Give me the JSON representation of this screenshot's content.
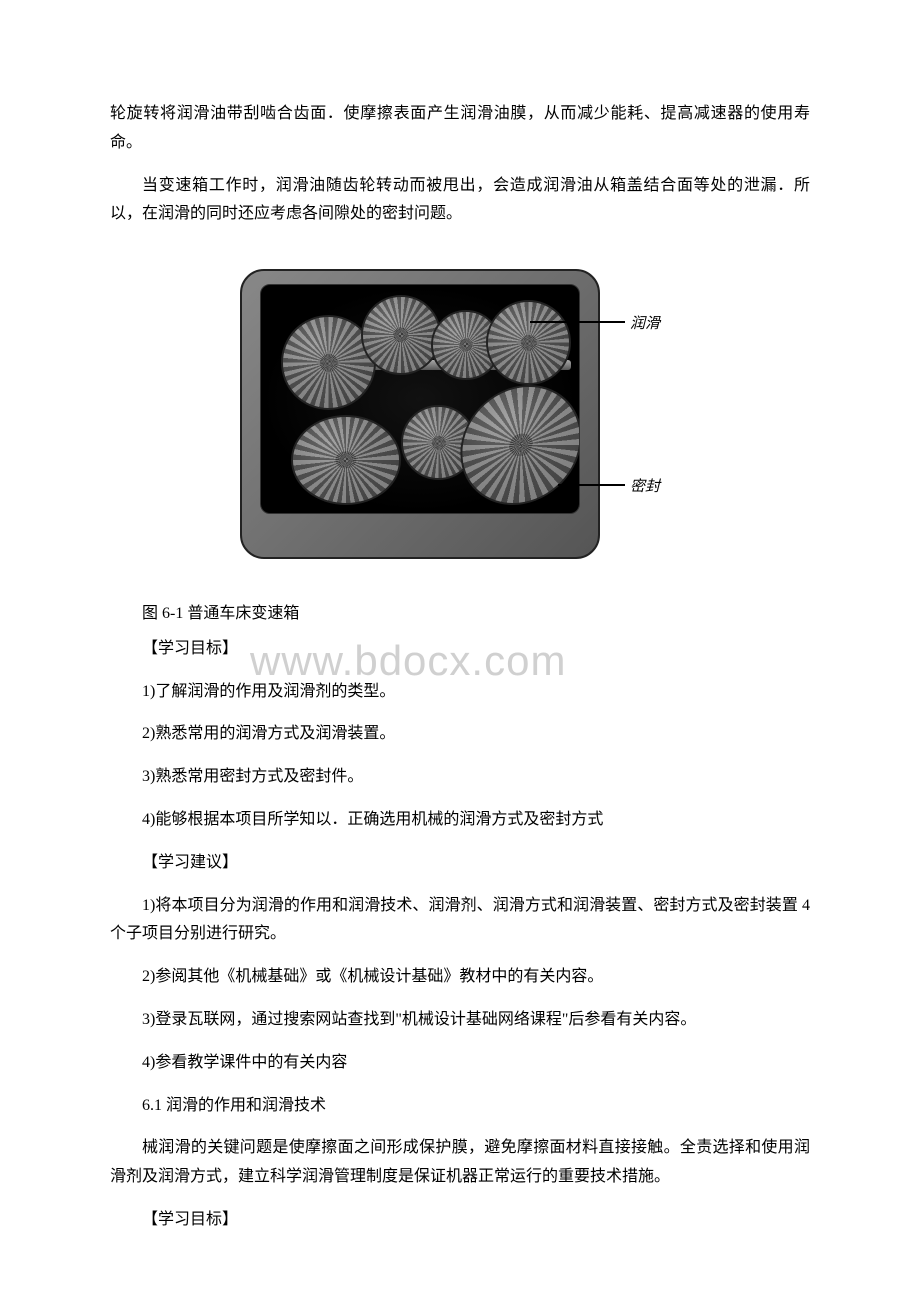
{
  "paragraphs": {
    "p1": "轮旋转将润滑油带刮啮合齿面．使摩擦表面产生润滑油膜，从而减少能耗、提高减速器的使用寿命。",
    "p2": "当变速箱工作时，润滑油随齿轮转动而被甩出，会造成润滑油从箱盖结合面等处的泄漏．所以，在润滑的同时还应考虑各间隙处的密封问题。"
  },
  "figure": {
    "caption": "图 6-1 普通车床变速箱",
    "label_lubrication": "润滑",
    "label_seal": "密封"
  },
  "watermark": "www.bdocx.com",
  "sections": {
    "learning_objectives_title": "【学习目标】",
    "objectives": {
      "o1": "1)了解润滑的作用及润滑剂的类型。",
      "o2": "2)熟悉常用的润滑方式及润滑装置。",
      "o3": "3)熟悉常用密封方式及密封件。",
      "o4": "4)能够根据本项目所学知以．正确选用机械的润滑方式及密封方式"
    },
    "learning_suggestions_title": "【学习建议】",
    "suggestions": {
      "s1": "1)将本项目分为润滑的作用和润滑技术、润滑剂、润滑方式和润滑装置、密封方式及密封装置 4 个子项目分别进行研究。",
      "s2": "2)参阅其他《机械基础》或《机械设计基础》教材中的有关内容。",
      "s3": "3)登录瓦联网，通过搜索网站查找到\"机械设计基础网络课程\"后参看有关内容。",
      "s4": "4)参看教学课件中的有关内容"
    },
    "section_6_1_title": "6.1 润滑的作用和润滑技术",
    "section_6_1_body": "械润滑的关键问题是使摩擦面之间形成保护膜，避免摩擦面材料直接接触。全责选择和使用润滑剂及润滑方式，建立科学润滑管理制度是保证机器正常运行的重要技术措施。",
    "learning_objectives_title_2": "【学习目标】"
  }
}
